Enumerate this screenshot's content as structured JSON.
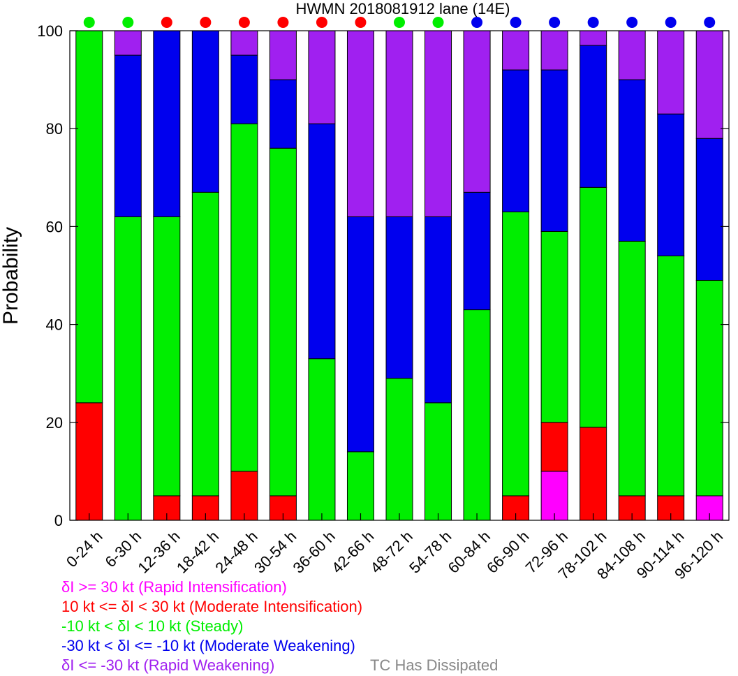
{
  "chart_data": {
    "type": "bar",
    "stacked": true,
    "title": "HWMN 2018081912 lane (14E)",
    "xlabel": "",
    "ylabel": "Probability",
    "ylim": [
      0,
      100
    ],
    "yticks": [
      0,
      20,
      40,
      60,
      80,
      100
    ],
    "grid": false,
    "legend_position": "bottom-left",
    "categories": [
      "0-24 h",
      "6-30 h",
      "12-36 h",
      "18-42 h",
      "24-48 h",
      "30-54 h",
      "36-60 h",
      "42-66 h",
      "48-72 h",
      "54-78 h",
      "60-84 h",
      "66-90 h",
      "72-96 h",
      "78-102 h",
      "84-108 h",
      "90-114 h",
      "96-120 h"
    ],
    "series": [
      {
        "name": "δI >= 30 kt (Rapid Intensification)",
        "color": "#ff00ff",
        "values": [
          0,
          0,
          0,
          0,
          0,
          0,
          0,
          0,
          0,
          0,
          0,
          0,
          10,
          0,
          0,
          0,
          5
        ]
      },
      {
        "name": "10 kt <= δI < 30 kt (Moderate Intensification)",
        "color": "#ff0000",
        "values": [
          24,
          0,
          5,
          5,
          10,
          5,
          0,
          0,
          0,
          0,
          0,
          5,
          10,
          19,
          5,
          5,
          0
        ]
      },
      {
        "name": "-10 kt < δI < 10 kt (Steady)",
        "color": "#00ee00",
        "values": [
          76,
          62,
          57,
          62,
          71,
          71,
          33,
          14,
          29,
          24,
          43,
          58,
          39,
          49,
          52,
          49,
          44
        ]
      },
      {
        "name": "-30 kt < δI <= -10 kt (Moderate Weakening)",
        "color": "#0000ee",
        "values": [
          0,
          33,
          38,
          33,
          14,
          14,
          48,
          48,
          33,
          38,
          24,
          29,
          33,
          29,
          33,
          29,
          29
        ]
      },
      {
        "name": "δI <= -30 kt (Rapid Weakening)",
        "color": "#a020f0",
        "values": [
          0,
          5,
          0,
          0,
          5,
          10,
          19,
          38,
          38,
          38,
          33,
          8,
          8,
          3,
          10,
          17,
          22
        ]
      }
    ],
    "dissipated_label": "TC Has Dissipated",
    "dissipated_color": "#888888",
    "top_markers": [
      "#00ee00",
      "#00ee00",
      "#ff0000",
      "#ff0000",
      "#ff0000",
      "#ff0000",
      "#ff0000",
      "#ff0000",
      "#00ee00",
      "#00ee00",
      "#0000ee",
      "#0000ee",
      "#0000ee",
      "#0000ee",
      "#0000ee",
      "#0000ee",
      "#0000ee"
    ]
  }
}
